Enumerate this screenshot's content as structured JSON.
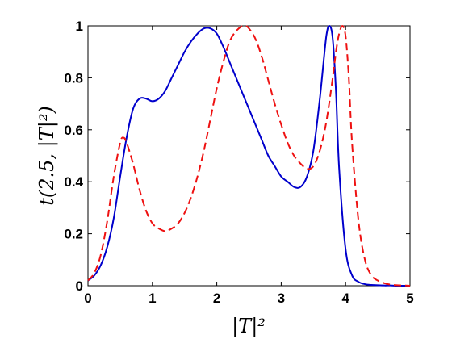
{
  "chart_data": {
    "type": "line",
    "xlabel": "|T|²",
    "ylabel": "t(2.5, |T|²)",
    "xlim": [
      0,
      5
    ],
    "ylim": [
      0,
      1
    ],
    "xticks": [
      0,
      1,
      2,
      3,
      4,
      5
    ],
    "yticks": [
      0,
      0.2,
      0.4,
      0.6,
      0.8,
      1
    ],
    "xtick_labels": [
      "0",
      "1",
      "2",
      "3",
      "4",
      "5"
    ],
    "ytick_labels": [
      "0",
      "0.2",
      "0.4",
      "0.6",
      "0.8",
      "1"
    ],
    "grid": false,
    "series": [
      {
        "color": "#0000cc",
        "style": "solid",
        "x": [
          0,
          0.1,
          0.2,
          0.3,
          0.4,
          0.5,
          0.6,
          0.7,
          0.8,
          0.9,
          1.0,
          1.1,
          1.2,
          1.3,
          1.4,
          1.5,
          1.6,
          1.7,
          1.8,
          1.9,
          2.0,
          2.1,
          2.2,
          2.3,
          2.4,
          2.5,
          2.6,
          2.7,
          2.8,
          2.9,
          3.0,
          3.1,
          3.2,
          3.3,
          3.4,
          3.5,
          3.6,
          3.7,
          3.75,
          3.8,
          3.85,
          3.9,
          4.0,
          4.1,
          4.2,
          4.3,
          4.4,
          4.5,
          4.6,
          4.7,
          4.8,
          4.9,
          5.0
        ],
        "y": [
          0.02,
          0.04,
          0.08,
          0.15,
          0.26,
          0.42,
          0.57,
          0.68,
          0.72,
          0.72,
          0.71,
          0.72,
          0.75,
          0.8,
          0.85,
          0.9,
          0.94,
          0.97,
          0.99,
          0.99,
          0.97,
          0.92,
          0.86,
          0.8,
          0.74,
          0.68,
          0.62,
          0.56,
          0.5,
          0.46,
          0.42,
          0.4,
          0.38,
          0.38,
          0.42,
          0.52,
          0.72,
          0.96,
          1.0,
          0.95,
          0.75,
          0.45,
          0.14,
          0.04,
          0.015,
          0.006,
          0.003,
          0.002,
          0.001,
          0.001,
          0.0,
          0.0,
          0.0
        ]
      },
      {
        "color": "#ee1111",
        "style": "dashed",
        "x": [
          0,
          0.1,
          0.2,
          0.3,
          0.4,
          0.5,
          0.55,
          0.6,
          0.7,
          0.8,
          0.9,
          1.0,
          1.1,
          1.2,
          1.3,
          1.4,
          1.5,
          1.6,
          1.7,
          1.8,
          1.9,
          2.0,
          2.1,
          2.2,
          2.3,
          2.4,
          2.45,
          2.5,
          2.6,
          2.7,
          2.8,
          2.9,
          3.0,
          3.1,
          3.2,
          3.3,
          3.4,
          3.5,
          3.6,
          3.7,
          3.8,
          3.85,
          3.9,
          3.95,
          4.0,
          4.05,
          4.1,
          4.2,
          4.3,
          4.4,
          4.5,
          4.6,
          4.7,
          4.8,
          4.9,
          5.0
        ],
        "y": [
          0.02,
          0.05,
          0.12,
          0.25,
          0.42,
          0.55,
          0.57,
          0.55,
          0.47,
          0.37,
          0.29,
          0.24,
          0.22,
          0.21,
          0.22,
          0.24,
          0.28,
          0.34,
          0.42,
          0.52,
          0.64,
          0.76,
          0.86,
          0.94,
          0.98,
          1.0,
          1.0,
          0.99,
          0.95,
          0.88,
          0.79,
          0.7,
          0.62,
          0.55,
          0.5,
          0.47,
          0.45,
          0.46,
          0.52,
          0.63,
          0.8,
          0.9,
          0.97,
          1.0,
          0.96,
          0.8,
          0.55,
          0.25,
          0.1,
          0.04,
          0.02,
          0.01,
          0.004,
          0.002,
          0.001,
          0.0
        ]
      }
    ]
  }
}
